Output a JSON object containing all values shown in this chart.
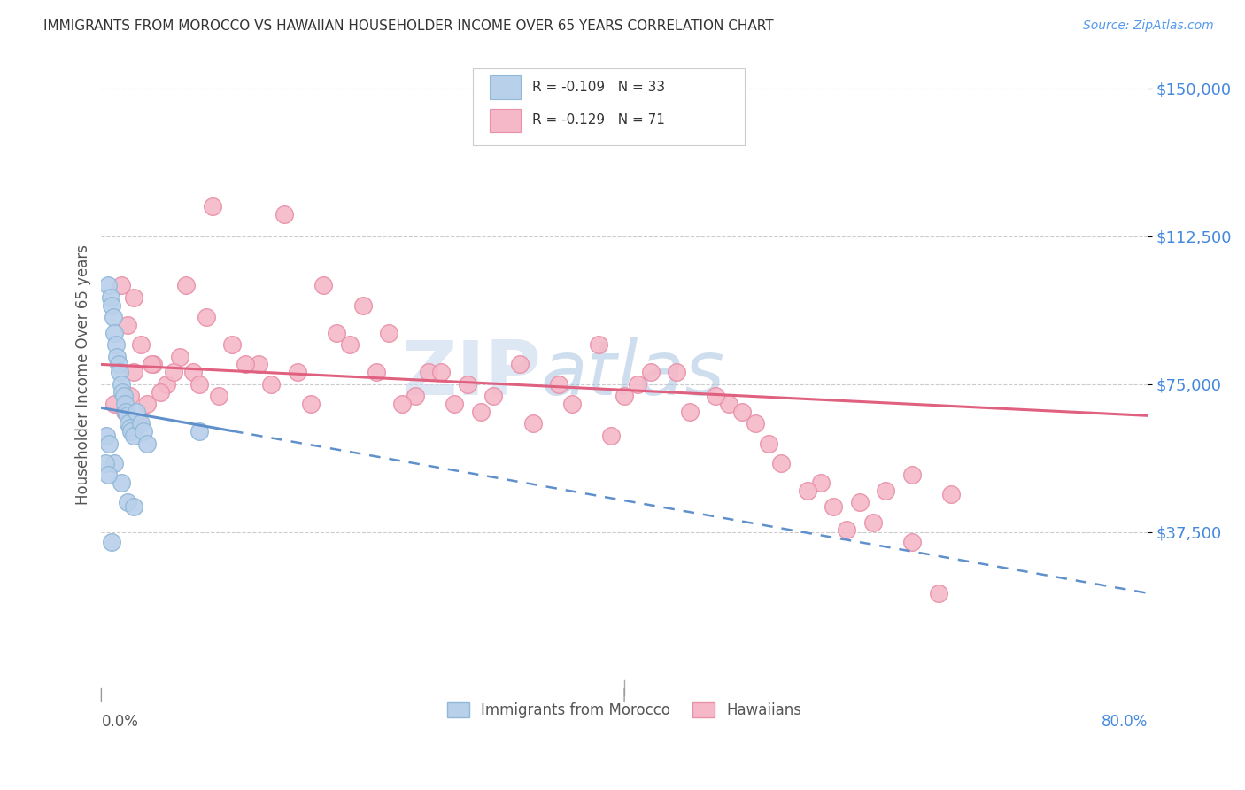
{
  "title": "IMMIGRANTS FROM MOROCCO VS HAWAIIAN HOUSEHOLDER INCOME OVER 65 YEARS CORRELATION CHART",
  "source": "Source: ZipAtlas.com",
  "ylabel": "Householder Income Over 65 years",
  "yticks": [
    37500,
    75000,
    112500,
    150000
  ],
  "ytick_labels": [
    "$37,500",
    "$75,000",
    "$112,500",
    "$150,000"
  ],
  "xmin": 0.0,
  "xmax": 80.0,
  "ymin": 0,
  "ymax": 155000,
  "legend_bottom_blue": "Immigrants from Morocco",
  "legend_bottom_pink": "Hawaiians",
  "blue_color": "#b8d0ea",
  "pink_color": "#f5b8c8",
  "blue_edge": "#90b8d8",
  "pink_edge": "#e890a8",
  "blue_line_color": "#6090cc",
  "pink_line_color": "#e06080",
  "watermark_zip": "ZIP",
  "watermark_atlas": "atlas",
  "blue_scatter_x": [
    0.5,
    0.7,
    0.8,
    0.9,
    1.0,
    1.1,
    1.2,
    1.3,
    1.4,
    1.5,
    1.6,
    1.7,
    1.8,
    1.9,
    2.0,
    2.1,
    2.2,
    2.3,
    2.5,
    2.7,
    3.0,
    3.2,
    3.5,
    0.4,
    0.6,
    1.0,
    1.5,
    2.0,
    2.5,
    7.5,
    0.3,
    0.5,
    0.8
  ],
  "blue_scatter_y": [
    100000,
    97000,
    95000,
    92000,
    88000,
    85000,
    82000,
    80000,
    78000,
    75000,
    73000,
    72000,
    70000,
    68000,
    67000,
    65000,
    64000,
    63000,
    62000,
    68000,
    65000,
    63000,
    60000,
    62000,
    60000,
    55000,
    50000,
    45000,
    44000,
    63000,
    55000,
    52000,
    35000
  ],
  "pink_scatter_x": [
    1.5,
    2.0,
    2.5,
    3.0,
    4.0,
    5.0,
    6.0,
    7.0,
    8.0,
    10.0,
    12.0,
    15.0,
    18.0,
    20.0,
    22.0,
    25.0,
    28.0,
    30.0,
    32.0,
    35.0,
    38.0,
    40.0,
    42.0,
    45.0,
    48.0,
    50.0,
    52.0,
    55.0,
    58.0,
    60.0,
    62.0,
    65.0,
    1.0,
    1.8,
    2.2,
    2.8,
    3.5,
    4.5,
    5.5,
    7.5,
    9.0,
    11.0,
    13.0,
    16.0,
    19.0,
    21.0,
    24.0,
    27.0,
    29.0,
    33.0,
    36.0,
    39.0,
    41.0,
    44.0,
    47.0,
    49.0,
    51.0,
    54.0,
    57.0,
    59.0,
    62.0,
    64.0,
    2.5,
    3.8,
    6.5,
    8.5,
    14.0,
    17.0,
    23.0,
    26.0,
    56.0
  ],
  "pink_scatter_y": [
    100000,
    90000,
    97000,
    85000,
    80000,
    75000,
    82000,
    78000,
    92000,
    85000,
    80000,
    78000,
    88000,
    95000,
    88000,
    78000,
    75000,
    72000,
    80000,
    75000,
    85000,
    72000,
    78000,
    68000,
    70000,
    65000,
    55000,
    50000,
    45000,
    48000,
    52000,
    47000,
    70000,
    68000,
    72000,
    65000,
    70000,
    73000,
    78000,
    75000,
    72000,
    80000,
    75000,
    70000,
    85000,
    78000,
    72000,
    70000,
    68000,
    65000,
    70000,
    62000,
    75000,
    78000,
    72000,
    68000,
    60000,
    48000,
    38000,
    40000,
    35000,
    22000,
    78000,
    80000,
    100000,
    120000,
    118000,
    100000,
    70000,
    78000,
    44000
  ],
  "blue_trend_x0": 0.0,
  "blue_trend_y0": 69000,
  "blue_trend_x1": 80.0,
  "blue_trend_y1": 22000,
  "blue_solid_x1": 10.0,
  "pink_trend_x0": 0.0,
  "pink_trend_y0": 80000,
  "pink_trend_x1": 80.0,
  "pink_trend_y1": 67000
}
